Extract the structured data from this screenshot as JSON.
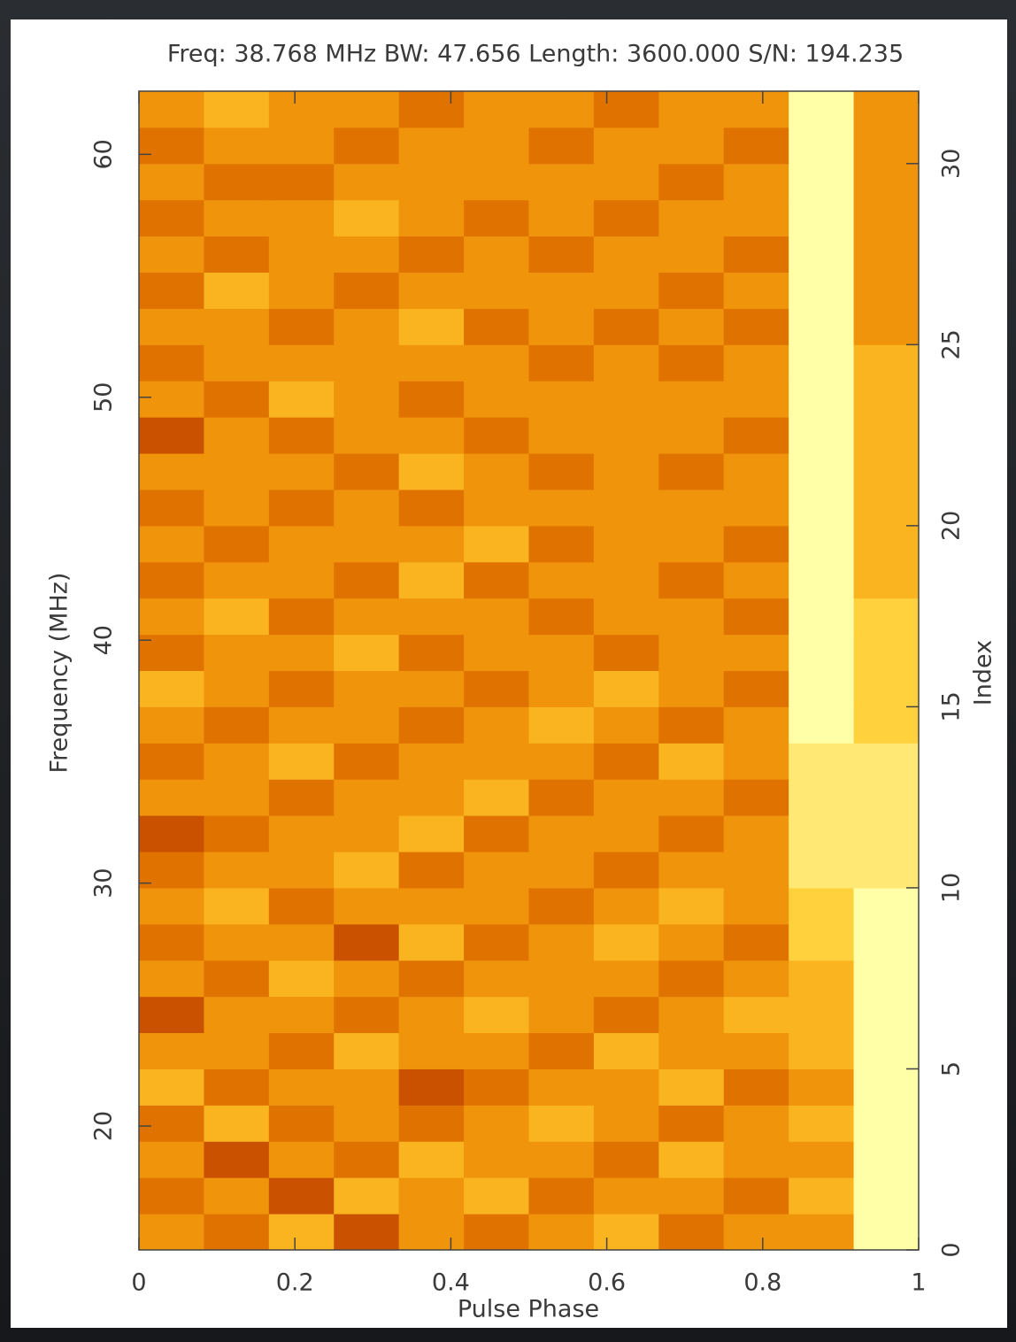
{
  "chart_data": {
    "type": "heatmap",
    "title": "Freq: 38.768 MHz BW: 47.656 Length: 3600.000 S/N: 194.235",
    "xlabel": "Pulse Phase",
    "ylabel": "Frequency (MHz)",
    "y2label": "Index",
    "xlim": [
      0,
      1
    ],
    "xticks": [
      0,
      0.2,
      0.4,
      0.6,
      0.8,
      1
    ],
    "ylim": [
      14.9,
      62.6
    ],
    "yticks": [
      20,
      30,
      40,
      50,
      60
    ],
    "y2lim": [
      0,
      32
    ],
    "y2ticks": [
      0,
      5,
      10,
      15,
      20,
      25,
      30
    ],
    "zlim": [
      0,
      9
    ],
    "colormap": [
      "#5e0800",
      "#b83800",
      "#ec8400",
      "#ffcc30",
      "#ffffa8"
    ],
    "z": [
      [
        5,
        4,
        6,
        3,
        5,
        4,
        5,
        6,
        4,
        5,
        5,
        9
      ],
      [
        4,
        5,
        3,
        6,
        5,
        6,
        4,
        5,
        5,
        4,
        6,
        9
      ],
      [
        5,
        3,
        5,
        4,
        6,
        5,
        5,
        4,
        6,
        5,
        5,
        9
      ],
      [
        4,
        6,
        4,
        5,
        4,
        5,
        6,
        5,
        4,
        5,
        6,
        9
      ],
      [
        6,
        4,
        5,
        5,
        3,
        4,
        5,
        5,
        6,
        4,
        5,
        9
      ],
      [
        5,
        5,
        4,
        6,
        5,
        5,
        4,
        6,
        5,
        5,
        6,
        9
      ],
      [
        3,
        5,
        5,
        4,
        5,
        6,
        5,
        4,
        5,
        6,
        6,
        9
      ],
      [
        5,
        4,
        6,
        5,
        4,
        5,
        5,
        5,
        4,
        5,
        6,
        9
      ],
      [
        4,
        5,
        5,
        3,
        6,
        4,
        5,
        6,
        5,
        4,
        7,
        9
      ],
      [
        5,
        6,
        4,
        5,
        5,
        5,
        4,
        5,
        6,
        5,
        7,
        9
      ],
      [
        4,
        5,
        5,
        6,
        4,
        5,
        5,
        4,
        5,
        5,
        8,
        8
      ],
      [
        3,
        4,
        5,
        5,
        6,
        4,
        5,
        5,
        4,
        5,
        8,
        8
      ],
      [
        5,
        5,
        4,
        5,
        5,
        6,
        4,
        5,
        5,
        4,
        8,
        8
      ],
      [
        4,
        5,
        6,
        4,
        5,
        5,
        5,
        4,
        6,
        5,
        8,
        8
      ],
      [
        5,
        4,
        5,
        5,
        4,
        5,
        6,
        5,
        4,
        5,
        9,
        7
      ],
      [
        6,
        5,
        4,
        5,
        5,
        4,
        5,
        6,
        5,
        4,
        9,
        7
      ],
      [
        4,
        5,
        5,
        6,
        4,
        5,
        5,
        4,
        5,
        5,
        9,
        7
      ],
      [
        5,
        6,
        4,
        5,
        5,
        5,
        4,
        5,
        5,
        4,
        9,
        7
      ],
      [
        4,
        5,
        5,
        4,
        6,
        4,
        5,
        5,
        4,
        5,
        9,
        6
      ],
      [
        5,
        4,
        5,
        5,
        5,
        6,
        4,
        5,
        5,
        4,
        9,
        6
      ],
      [
        4,
        5,
        4,
        5,
        4,
        5,
        5,
        5,
        5,
        5,
        9,
        6
      ],
      [
        5,
        5,
        5,
        4,
        6,
        5,
        4,
        5,
        4,
        5,
        9,
        6
      ],
      [
        3,
        5,
        4,
        5,
        5,
        4,
        5,
        5,
        5,
        4,
        9,
        6
      ],
      [
        5,
        4,
        6,
        5,
        4,
        5,
        5,
        5,
        5,
        5,
        9,
        6
      ],
      [
        4,
        5,
        5,
        5,
        5,
        5,
        4,
        5,
        4,
        5,
        9,
        6
      ],
      [
        5,
        5,
        4,
        5,
        6,
        4,
        5,
        4,
        5,
        4,
        9,
        5
      ],
      [
        4,
        6,
        5,
        4,
        5,
        5,
        5,
        5,
        4,
        5,
        9,
        5
      ],
      [
        5,
        4,
        5,
        5,
        4,
        5,
        4,
        5,
        5,
        4,
        9,
        5
      ],
      [
        4,
        5,
        5,
        6,
        5,
        4,
        5,
        4,
        5,
        5,
        9,
        5
      ],
      [
        5,
        4,
        4,
        5,
        5,
        5,
        5,
        5,
        4,
        5,
        9,
        5
      ],
      [
        4,
        5,
        5,
        4,
        5,
        5,
        4,
        5,
        5,
        4,
        9,
        5
      ],
      [
        5,
        6,
        5,
        5,
        4,
        5,
        5,
        4,
        5,
        5,
        9,
        5
      ]
    ]
  }
}
